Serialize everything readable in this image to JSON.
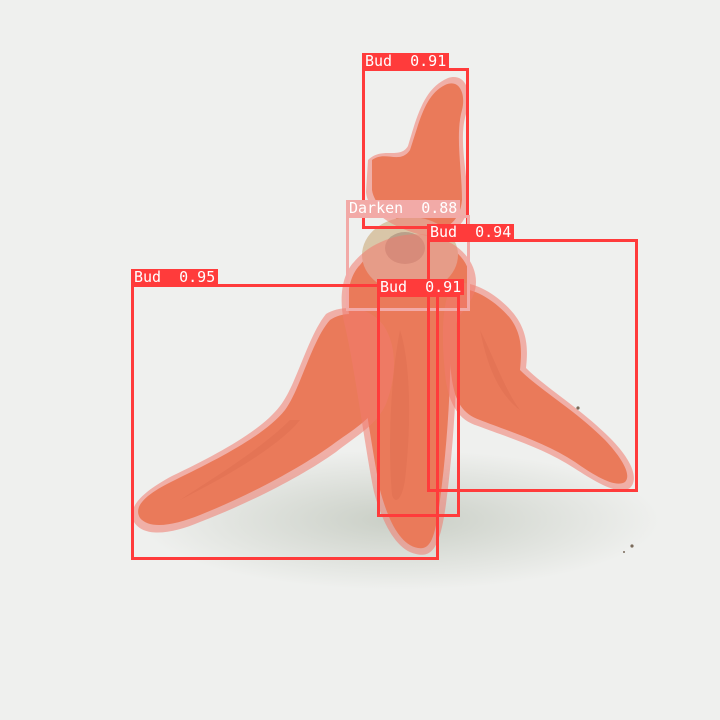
{
  "colors": {
    "background": "#eff0ee",
    "box_bud": "#ff3b3b",
    "box_darken": "#f2aaa7",
    "mask_fill": "#f07a6e",
    "flower_orange": "#e2783f"
  },
  "detections": [
    {
      "id": "bud-top",
      "label": "Bud",
      "score": "0.91"
    },
    {
      "id": "darken",
      "label": "Darken",
      "score": "0.88"
    },
    {
      "id": "bud-right",
      "label": "Bud",
      "score": "0.94"
    },
    {
      "id": "bud-left",
      "label": "Bud",
      "score": "0.95"
    },
    {
      "id": "bud-center",
      "label": "Bud",
      "score": "0.91"
    }
  ]
}
